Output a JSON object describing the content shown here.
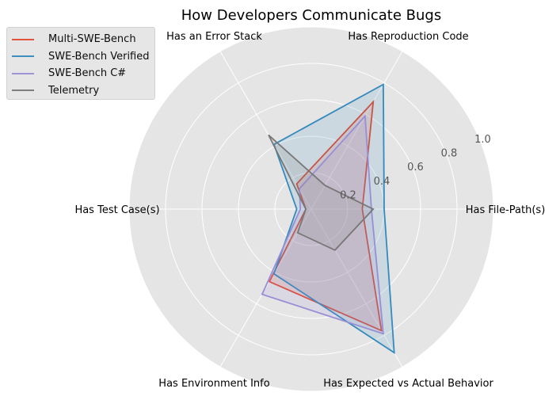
{
  "chart_data": {
    "type": "radar",
    "title": "How Developers Communicate Bugs",
    "axes": [
      "Has File-Path(s)",
      "Has Reproduction Code",
      "Has an Error Stack",
      "Has Test Case(s)",
      "Has Environment Info",
      "Has Expected vs Actual Behavior"
    ],
    "rlim": [
      0,
      1.0
    ],
    "radial_ticks": [
      0.2,
      0.4,
      0.6,
      0.8,
      1.0
    ],
    "radial_tick_labels": [
      "0.2",
      "0.4",
      "0.6",
      "0.8",
      "1.0"
    ],
    "grid": true,
    "legend_position": "top-left",
    "series": [
      {
        "name": "Multi-SWE-Bench",
        "color": "#e24a33",
        "values": [
          0.28,
          0.68,
          0.16,
          0.03,
          0.46,
          0.77
        ]
      },
      {
        "name": "SWE-Bench Verified",
        "color": "#348abd",
        "values": [
          0.4,
          0.79,
          0.41,
          0.08,
          0.41,
          0.91
        ]
      },
      {
        "name": "SWE-Bench C#",
        "color": "#988ed5",
        "values": [
          0.33,
          0.59,
          0.13,
          0.06,
          0.54,
          0.79
        ]
      },
      {
        "name": "Telemetry",
        "color": "#777777",
        "values": [
          0.34,
          0.15,
          0.47,
          0.03,
          0.15,
          0.26
        ]
      }
    ]
  }
}
